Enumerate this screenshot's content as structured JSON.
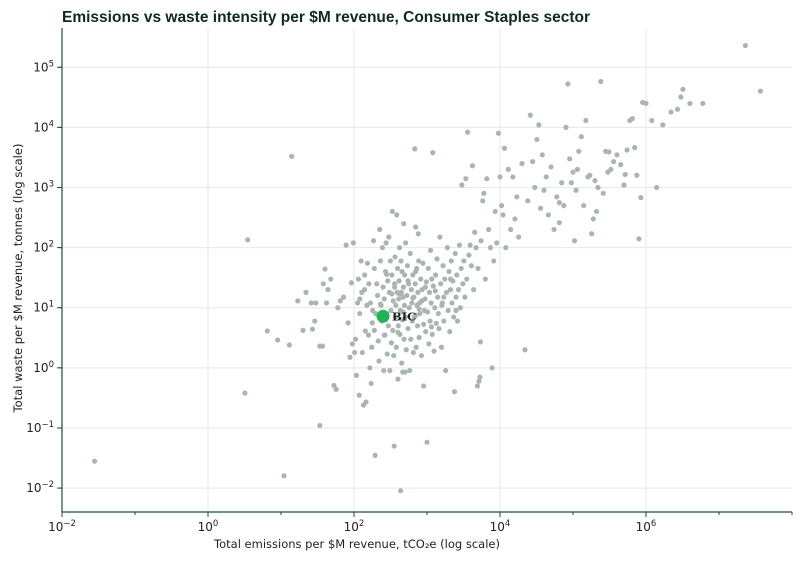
{
  "chart_data": {
    "type": "scatter",
    "title": "Emissions vs waste intensity per $M revenue, Consumer Staples sector",
    "xlabel": "Total emissions per $M revenue, tCO₂e (log scale)",
    "ylabel": "Total waste per $M revenue, tonnes (log scale)",
    "x_scale": "log",
    "y_scale": "log",
    "xlim": [
      0.01,
      100000000
    ],
    "ylim": [
      0.004,
      450000
    ],
    "x_ticks": [
      {
        "base": "10",
        "exp": "−2",
        "value": 0.01
      },
      {
        "base": "10",
        "exp": "0",
        "value": 1
      },
      {
        "base": "10",
        "exp": "2",
        "value": 100
      },
      {
        "base": "10",
        "exp": "4",
        "value": 10000
      },
      {
        "base": "10",
        "exp": "6",
        "value": 1000000
      }
    ],
    "y_ticks": [
      {
        "base": "10",
        "exp": "−2",
        "value": 0.01
      },
      {
        "base": "10",
        "exp": "−1",
        "value": 0.1
      },
      {
        "base": "10",
        "exp": "0",
        "value": 1
      },
      {
        "base": "10",
        "exp": "1",
        "value": 10
      },
      {
        "base": "10",
        "exp": "2",
        "value": 100
      },
      {
        "base": "10",
        "exp": "3",
        "value": 1000
      },
      {
        "base": "10",
        "exp": "4",
        "value": 10000
      },
      {
        "base": "10",
        "exp": "5",
        "value": 100000
      }
    ],
    "grid": true,
    "colors": {
      "points": "#a9b6b0",
      "highlight": "#21b35a",
      "axis": "#1f4d3a"
    },
    "highlight": {
      "label": "BIC",
      "x": 250,
      "y": 7.2
    },
    "points": [
      [
        0.028,
        0.028
      ],
      [
        3.2,
        0.38
      ],
      [
        3.5,
        135
      ],
      [
        6.5,
        4.1
      ],
      [
        9,
        2.9
      ],
      [
        11,
        0.016
      ],
      [
        13,
        2.4
      ],
      [
        14,
        3300
      ],
      [
        20,
        4.2
      ],
      [
        17,
        13
      ],
      [
        22,
        18
      ],
      [
        26,
        12
      ],
      [
        27,
        4.4
      ],
      [
        29,
        6
      ],
      [
        30,
        12
      ],
      [
        34,
        0.11
      ],
      [
        34,
        2.3
      ],
      [
        37,
        2.3
      ],
      [
        38,
        25
      ],
      [
        40,
        44
      ],
      [
        42,
        12
      ],
      [
        44,
        20
      ],
      [
        48,
        30
      ],
      [
        53,
        0.51
      ],
      [
        57,
        0.44
      ],
      [
        60,
        10
      ],
      [
        65,
        13
      ],
      [
        72,
        15
      ],
      [
        78,
        110
      ],
      [
        83,
        5.6
      ],
      [
        88,
        1.5
      ],
      [
        92,
        26
      ],
      [
        95,
        2.5
      ],
      [
        98,
        120
      ],
      [
        102,
        1.8
      ],
      [
        105,
        3
      ],
      [
        108,
        0.75
      ],
      [
        112,
        12
      ],
      [
        115,
        30
      ],
      [
        118,
        0.35
      ],
      [
        120,
        8
      ],
      [
        125,
        60
      ],
      [
        128,
        18
      ],
      [
        130,
        1.8
      ],
      [
        135,
        0.24
      ],
      [
        140,
        35
      ],
      [
        143,
        4.1
      ],
      [
        146,
        0.27
      ],
      [
        150,
        11
      ],
      [
        153,
        55
      ],
      [
        158,
        3.5
      ],
      [
        160,
        25
      ],
      [
        165,
        1
      ],
      [
        168,
        12
      ],
      [
        172,
        0.55
      ],
      [
        175,
        2.2
      ],
      [
        178,
        5.6
      ],
      [
        185,
        130
      ],
      [
        190,
        45
      ],
      [
        195,
        0.035
      ],
      [
        198,
        8
      ],
      [
        205,
        25
      ],
      [
        210,
        16
      ],
      [
        215,
        2.8
      ],
      [
        220,
        1.3
      ],
      [
        225,
        200
      ],
      [
        230,
        60
      ],
      [
        235,
        11
      ],
      [
        240,
        6
      ],
      [
        245,
        100
      ],
      [
        250,
        22
      ],
      [
        255,
        0.9
      ],
      [
        260,
        14
      ],
      [
        265,
        3.5
      ],
      [
        270,
        40
      ],
      [
        275,
        120
      ],
      [
        280,
        8
      ],
      [
        285,
        1.7
      ],
      [
        290,
        28
      ],
      [
        295,
        5
      ],
      [
        300,
        150
      ],
      [
        305,
        18
      ],
      [
        310,
        0.9
      ],
      [
        315,
        60
      ],
      [
        320,
        9
      ],
      [
        325,
        2.6
      ],
      [
        330,
        35
      ],
      [
        335,
        400
      ],
      [
        340,
        4.2
      ],
      [
        345,
        13
      ],
      [
        350,
        1.6
      ],
      [
        355,
        0.05
      ],
      [
        360,
        25
      ],
      [
        365,
        70
      ],
      [
        370,
        7
      ],
      [
        375,
        11
      ],
      [
        380,
        2.2
      ],
      [
        385,
        350
      ],
      [
        390,
        18
      ],
      [
        395,
        45
      ],
      [
        400,
        0.65
      ],
      [
        405,
        5
      ],
      [
        410,
        14
      ],
      [
        415,
        28
      ],
      [
        420,
        100
      ],
      [
        425,
        3.6
      ],
      [
        430,
        9
      ],
      [
        435,
        0.009
      ],
      [
        440,
        60
      ],
      [
        445,
        18
      ],
      [
        450,
        1.2
      ],
      [
        455,
        40
      ],
      [
        460,
        6.3
      ],
      [
        465,
        0.85
      ],
      [
        470,
        15
      ],
      [
        475,
        22
      ],
      [
        480,
        250
      ],
      [
        485,
        3
      ],
      [
        490,
        11
      ],
      [
        495,
        35
      ],
      [
        500,
        0.85
      ],
      [
        505,
        7
      ],
      [
        510,
        120
      ],
      [
        520,
        2
      ],
      [
        530,
        16
      ],
      [
        540,
        50
      ],
      [
        550,
        4.5
      ],
      [
        560,
        25
      ],
      [
        570,
        10
      ],
      [
        580,
        0.9
      ],
      [
        590,
        80
      ],
      [
        600,
        3
      ],
      [
        610,
        20
      ],
      [
        620,
        12
      ],
      [
        630,
        6
      ],
      [
        640,
        35
      ],
      [
        650,
        1.8
      ],
      [
        660,
        15
      ],
      [
        670,
        7
      ],
      [
        680,
        4400
      ],
      [
        690,
        25
      ],
      [
        700,
        220
      ],
      [
        710,
        2.2
      ],
      [
        720,
        45
      ],
      [
        730,
        11
      ],
      [
        740,
        5
      ],
      [
        750,
        18
      ],
      [
        760,
        170
      ],
      [
        770,
        60
      ],
      [
        780,
        3.2
      ],
      [
        790,
        12
      ],
      [
        800,
        8
      ],
      [
        820,
        30
      ],
      [
        840,
        1.6
      ],
      [
        860,
        20
      ],
      [
        880,
        55
      ],
      [
        900,
        0.5
      ],
      [
        920,
        9
      ],
      [
        940,
        14
      ],
      [
        960,
        4
      ],
      [
        980,
        27
      ],
      [
        1000,
        0.058
      ],
      [
        1020,
        8.5
      ],
      [
        1040,
        45
      ],
      [
        1060,
        2.5
      ],
      [
        1080,
        18
      ],
      [
        1100,
        6
      ],
      [
        1120,
        90
      ],
      [
        1140,
        12
      ],
      [
        1160,
        30
      ],
      [
        1180,
        3.6
      ],
      [
        1200,
        3800
      ],
      [
        1220,
        23
      ],
      [
        1250,
        1.9
      ],
      [
        1280,
        10
      ],
      [
        1310,
        35
      ],
      [
        1340,
        5.5
      ],
      [
        1370,
        65
      ],
      [
        1400,
        15
      ],
      [
        1430,
        8
      ],
      [
        1460,
        4.5
      ],
      [
        1500,
        150
      ],
      [
        1540,
        25
      ],
      [
        1580,
        2.2
      ],
      [
        1620,
        12
      ],
      [
        1660,
        50
      ],
      [
        1700,
        6
      ],
      [
        1750,
        30
      ],
      [
        1800,
        0.9
      ],
      [
        1850,
        18
      ],
      [
        1900,
        100
      ],
      [
        1950,
        9
      ],
      [
        2000,
        40
      ],
      [
        2050,
        4
      ],
      [
        2100,
        20
      ],
      [
        2150,
        60
      ],
      [
        2200,
        12
      ],
      [
        2260,
        28
      ],
      [
        2320,
        7
      ],
      [
        2380,
        0.4
      ],
      [
        2440,
        80
      ],
      [
        2500,
        15
      ],
      [
        2560,
        35
      ],
      [
        2620,
        6
      ],
      [
        2700,
        20
      ],
      [
        2780,
        110
      ],
      [
        2860,
        10
      ],
      [
        2940,
        45
      ],
      [
        3000,
        1100
      ],
      [
        3100,
        25
      ],
      [
        3200,
        60
      ],
      [
        3300,
        15
      ],
      [
        3400,
        1400
      ],
      [
        3500,
        30
      ],
      [
        3600,
        8300
      ],
      [
        3750,
        75
      ],
      [
        3900,
        110
      ],
      [
        4050,
        50
      ],
      [
        4200,
        2300
      ],
      [
        4350,
        20
      ],
      [
        4500,
        180
      ],
      [
        4700,
        100
      ],
      [
        4900,
        0.5
      ],
      [
        5000,
        45
      ],
      [
        5150,
        0.6
      ],
      [
        5300,
        0.7
      ],
      [
        5400,
        2.7
      ],
      [
        5500,
        130
      ],
      [
        5800,
        600
      ],
      [
        6000,
        800
      ],
      [
        6300,
        30
      ],
      [
        6600,
        1400
      ],
      [
        7000,
        200
      ],
      [
        7400,
        100
      ],
      [
        7800,
        1
      ],
      [
        8200,
        60
      ],
      [
        8600,
        400
      ],
      [
        9000,
        120
      ],
      [
        9500,
        8000
      ],
      [
        10000,
        1500
      ],
      [
        10500,
        500
      ],
      [
        11000,
        350
      ],
      [
        11500,
        4500
      ],
      [
        12000,
        100
      ],
      [
        13000,
        2000
      ],
      [
        14000,
        200
      ],
      [
        15000,
        1500
      ],
      [
        16000,
        300
      ],
      [
        17000,
        700
      ],
      [
        18000,
        150
      ],
      [
        20000,
        2500
      ],
      [
        22000,
        2
      ],
      [
        24000,
        600
      ],
      [
        26000,
        16000
      ],
      [
        28000,
        2700
      ],
      [
        30000,
        1000
      ],
      [
        32000,
        6300
      ],
      [
        34000,
        11000
      ],
      [
        36000,
        450
      ],
      [
        38000,
        3500
      ],
      [
        40000,
        900
      ],
      [
        43000,
        1500
      ],
      [
        46000,
        350
      ],
      [
        50000,
        2200
      ],
      [
        55000,
        200
      ],
      [
        60000,
        700
      ],
      [
        65000,
        260
      ],
      [
        70000,
        1200
      ],
      [
        75000,
        500
      ],
      [
        80000,
        10000
      ],
      [
        85000,
        53000
      ],
      [
        90000,
        3000
      ],
      [
        95000,
        1200
      ],
      [
        100000,
        1800
      ],
      [
        105000,
        130
      ],
      [
        110000,
        900
      ],
      [
        115000,
        2000
      ],
      [
        120000,
        4000
      ],
      [
        130000,
        7000
      ],
      [
        140000,
        500
      ],
      [
        150000,
        13000
      ],
      [
        160000,
        1500
      ],
      [
        170000,
        1600
      ],
      [
        180000,
        170
      ],
      [
        190000,
        300
      ],
      [
        200000,
        1300
      ],
      [
        210000,
        400
      ],
      [
        220000,
        1000
      ],
      [
        240000,
        58000
      ],
      [
        260000,
        800
      ],
      [
        280000,
        4000
      ],
      [
        300000,
        1800
      ],
      [
        330000,
        2000
      ],
      [
        360000,
        2700
      ],
      [
        400000,
        3500
      ],
      [
        450000,
        2400
      ],
      [
        500000,
        1100
      ],
      [
        550000,
        4200
      ],
      [
        600000,
        13000
      ],
      [
        650000,
        14000
      ],
      [
        700000,
        4600
      ],
      [
        750000,
        1600
      ],
      [
        800000,
        140
      ],
      [
        900000,
        26000
      ],
      [
        1000000,
        25000
      ],
      [
        1200000,
        13000
      ],
      [
        1400000,
        1000
      ],
      [
        1700000,
        11000
      ],
      [
        2200000,
        18000
      ],
      [
        2700000,
        20000
      ],
      [
        3000000,
        32000
      ],
      [
        3200000,
        43000
      ],
      [
        4000000,
        25000
      ],
      [
        6000000,
        25000
      ],
      [
        23000000,
        230000
      ],
      [
        37000000,
        40000
      ],
      [
        850000,
        680
      ],
      [
        520000,
        1650
      ],
      [
        310000,
        3900
      ],
      [
        65000,
        560
      ],
      [
        700,
        40
      ],
      [
        550,
        28
      ],
      [
        280,
        36
      ],
      [
        420,
        17
      ],
      [
        360,
        22
      ],
      [
        850,
        13
      ],
      [
        950,
        22
      ],
      [
        1300,
        19
      ],
      [
        1600,
        11
      ],
      [
        780,
        9.5
      ],
      [
        640,
        14.5
      ],
      [
        470,
        8.5
      ],
      [
        330,
        17
      ],
      [
        230,
        11.5
      ],
      [
        180,
        9
      ],
      [
        140,
        20
      ],
      [
        120,
        14
      ],
      [
        700,
        7.5
      ],
      [
        900,
        5.3
      ],
      [
        1150,
        4.8
      ],
      [
        400,
        3.9
      ],
      [
        260,
        3.5
      ],
      [
        190,
        4.2
      ],
      [
        1700,
        15
      ],
      [
        2100,
        30
      ],
      [
        2500,
        9
      ]
    ]
  }
}
